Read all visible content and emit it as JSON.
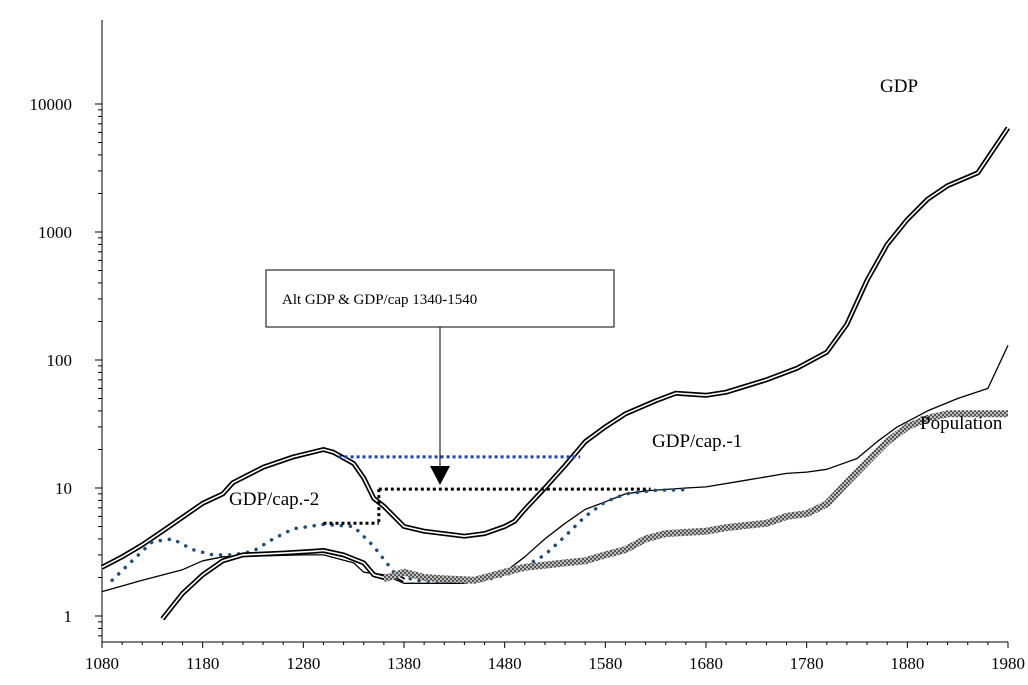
{
  "chart_data": {
    "type": "line",
    "title": "",
    "xlabel": "",
    "ylabel": "",
    "xlim": [
      1080,
      1980
    ],
    "ylim": [
      1,
      10000
    ],
    "y_scale": "log",
    "x_ticks": [
      "1080",
      "1180",
      "1280",
      "1380",
      "1480",
      "1580",
      "1680",
      "1780",
      "1880",
      "1980"
    ],
    "y_ticks": [
      "1",
      "10",
      "100",
      "1000",
      "10000"
    ],
    "grid": false,
    "legend": "none",
    "annotation": {
      "text": "Alt GDP & GDP/cap 1340-1540",
      "arrow_to": [
        1420,
        9.5
      ]
    },
    "series": [
      {
        "name": "GDP",
        "style": "double-line",
        "color": "#000000",
        "points": [
          [
            1080,
            2.4
          ],
          [
            1100,
            2.9
          ],
          [
            1120,
            3.6
          ],
          [
            1140,
            4.6
          ],
          [
            1160,
            5.9
          ],
          [
            1180,
            7.6
          ],
          [
            1200,
            9.0
          ],
          [
            1210,
            11.0
          ],
          [
            1240,
            14.5
          ],
          [
            1270,
            17.5
          ],
          [
            1300,
            20.0
          ],
          [
            1310,
            19.0
          ],
          [
            1330,
            15.5
          ],
          [
            1340,
            12.0
          ],
          [
            1350,
            8.3
          ],
          [
            1360,
            7.2
          ],
          [
            1380,
            5.0
          ],
          [
            1400,
            4.6
          ],
          [
            1440,
            4.2
          ],
          [
            1460,
            4.4
          ],
          [
            1480,
            5.0
          ],
          [
            1490,
            5.5
          ],
          [
            1500,
            6.8
          ],
          [
            1520,
            10.0
          ],
          [
            1540,
            15.0
          ],
          [
            1560,
            23.0
          ],
          [
            1580,
            30.0
          ],
          [
            1600,
            38.0
          ],
          [
            1630,
            48.0
          ],
          [
            1650,
            55.0
          ],
          [
            1680,
            53.0
          ],
          [
            1700,
            56.0
          ],
          [
            1740,
            70.0
          ],
          [
            1770,
            86.0
          ],
          [
            1800,
            115.0
          ],
          [
            1820,
            190.0
          ],
          [
            1840,
            420.0
          ],
          [
            1860,
            800.0
          ],
          [
            1880,
            1250.0
          ],
          [
            1900,
            1800.0
          ],
          [
            1920,
            2300.0
          ],
          [
            1950,
            2900.0
          ],
          [
            1980,
            6500.0
          ]
        ]
      },
      {
        "name": "GDP/cap.-1",
        "style": "thin-line",
        "color": "#000000",
        "points": [
          [
            1080,
            1.55
          ],
          [
            1120,
            1.9
          ],
          [
            1160,
            2.3
          ],
          [
            1180,
            2.7
          ],
          [
            1200,
            2.9
          ],
          [
            1280,
            3.0
          ],
          [
            1300,
            3.0
          ],
          [
            1330,
            2.6
          ],
          [
            1340,
            2.2
          ],
          [
            1360,
            2.1
          ],
          [
            1380,
            1.8
          ],
          [
            1400,
            1.8
          ],
          [
            1440,
            1.8
          ],
          [
            1460,
            1.9
          ],
          [
            1480,
            2.2
          ],
          [
            1500,
            2.9
          ],
          [
            1520,
            4.0
          ],
          [
            1540,
            5.3
          ],
          [
            1560,
            6.8
          ],
          [
            1580,
            7.8
          ],
          [
            1600,
            9.0
          ],
          [
            1620,
            9.5
          ],
          [
            1660,
            10.0
          ],
          [
            1680,
            10.2
          ],
          [
            1720,
            11.5
          ],
          [
            1760,
            13.0
          ],
          [
            1780,
            13.3
          ],
          [
            1800,
            14.0
          ],
          [
            1830,
            17.0
          ],
          [
            1850,
            23.0
          ],
          [
            1870,
            30.0
          ],
          [
            1900,
            40.0
          ],
          [
            1930,
            50.0
          ],
          [
            1960,
            60.0
          ],
          [
            1980,
            130.0
          ]
        ]
      },
      {
        "name": "GDP/cap.-2",
        "style": "dotted",
        "color": "#1f4e79",
        "points": [
          [
            1090,
            1.9
          ],
          [
            1110,
            2.7
          ],
          [
            1130,
            3.8
          ],
          [
            1150,
            4.0
          ],
          [
            1170,
            3.3
          ],
          [
            1190,
            3.0
          ],
          [
            1210,
            3.0
          ],
          [
            1230,
            3.2
          ],
          [
            1250,
            4.0
          ],
          [
            1270,
            4.8
          ],
          [
            1300,
            5.2
          ],
          [
            1330,
            5.0
          ],
          [
            1350,
            3.5
          ],
          [
            1370,
            2.2
          ],
          [
            1390,
            1.9
          ],
          [
            1420,
            1.85
          ],
          [
            1460,
            1.9
          ],
          [
            1490,
            2.2
          ],
          [
            1520,
            3.0
          ],
          [
            1540,
            4.2
          ],
          [
            1560,
            6.0
          ],
          [
            1580,
            7.8
          ],
          [
            1600,
            9.0
          ],
          [
            1630,
            9.6
          ],
          [
            1660,
            9.7
          ]
        ]
      },
      {
        "name": "GDP/cap.-2 lower",
        "style": "double-line",
        "color": "#000000",
        "points": [
          [
            1140,
            0.95
          ],
          [
            1160,
            1.5
          ],
          [
            1180,
            2.1
          ],
          [
            1200,
            2.7
          ],
          [
            1220,
            3.0
          ],
          [
            1260,
            3.1
          ],
          [
            1290,
            3.2
          ],
          [
            1300,
            3.25
          ],
          [
            1320,
            3.0
          ],
          [
            1340,
            2.6
          ],
          [
            1350,
            2.1
          ],
          [
            1360,
            2.0
          ],
          [
            1370,
            2.1
          ],
          [
            1380,
            1.9
          ]
        ]
      },
      {
        "name": "Population",
        "style": "hatched-band",
        "color": "#7f7f7f",
        "points": [
          [
            1360,
            1.95
          ],
          [
            1380,
            2.2
          ],
          [
            1400,
            2.0
          ],
          [
            1420,
            1.95
          ],
          [
            1450,
            1.9
          ],
          [
            1480,
            2.2
          ],
          [
            1500,
            2.4
          ],
          [
            1520,
            2.5
          ],
          [
            1540,
            2.6
          ],
          [
            1560,
            2.7
          ],
          [
            1580,
            3.0
          ],
          [
            1600,
            3.3
          ],
          [
            1620,
            4.0
          ],
          [
            1640,
            4.4
          ],
          [
            1660,
            4.5
          ],
          [
            1680,
            4.6
          ],
          [
            1700,
            4.9
          ],
          [
            1720,
            5.1
          ],
          [
            1740,
            5.3
          ],
          [
            1760,
            6.0
          ],
          [
            1780,
            6.3
          ],
          [
            1800,
            7.5
          ],
          [
            1820,
            11.0
          ],
          [
            1840,
            16.0
          ],
          [
            1860,
            23.0
          ],
          [
            1880,
            30.0
          ],
          [
            1900,
            35.0
          ],
          [
            1920,
            38.0
          ],
          [
            1950,
            38.0
          ],
          [
            1980,
            38.0
          ]
        ]
      }
    ],
    "labels": {
      "gdp": "GDP",
      "gdp_cap_1": "GDP/cap.-1",
      "gdp_cap_2": "GDP/cap.-2",
      "population": "Population"
    }
  }
}
